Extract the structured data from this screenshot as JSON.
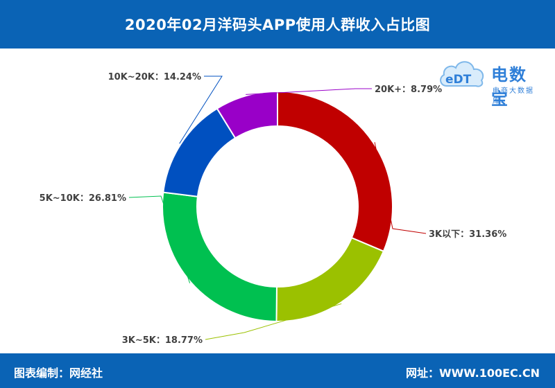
{
  "header": {
    "title": "2020年02月洋码头APP使用人群收入占比图"
  },
  "logo": {
    "mark_text": "eDT",
    "brand": "电数宝",
    "sub": "电商大数据库"
  },
  "footer": {
    "left": "图表编制：网经社",
    "right": "网址：WWW.100EC.CN"
  },
  "colors": {
    "header_bg": "#0a63b5",
    "footer_bg": "#0a63b5"
  },
  "chart_data": {
    "type": "pie",
    "donut": true,
    "slices": [
      {
        "label": "3K以下：31.36%",
        "value": 31.36,
        "color": "#c00000"
      },
      {
        "label": "3K~5K：18.77%",
        "value": 18.77,
        "color": "#9bc100"
      },
      {
        "label": "5K~10K：26.81%",
        "value": 26.81,
        "color": "#00c050"
      },
      {
        "label": "10K~20K：14.24%",
        "value": 14.24,
        "color": "#0050c0"
      },
      {
        "label": "20K+：8.79%",
        "value": 8.79,
        "color": "#9900c8"
      }
    ]
  }
}
